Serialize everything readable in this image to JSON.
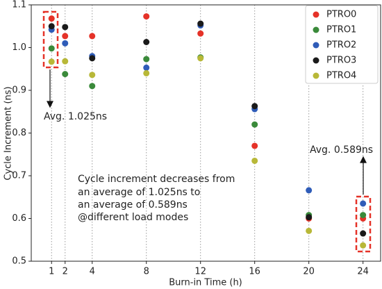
{
  "chart_data": {
    "type": "scatter",
    "x_label": "Burn-in Time (h)",
    "y_label": "Cycle Increment (ns)",
    "x": [
      1,
      2,
      4,
      8,
      12,
      16,
      20,
      24
    ],
    "series": [
      {
        "name": "PTRO0",
        "color": "#e53228",
        "values": [
          1.068,
          1.027,
          1.027,
          1.073,
          1.033,
          0.77,
          0.6,
          0.6
        ]
      },
      {
        "name": "PTRO1",
        "color": "#3a8a3a",
        "values": [
          0.998,
          0.938,
          0.91,
          0.973,
          0.977,
          0.82,
          0.608,
          0.608
        ]
      },
      {
        "name": "PTRO2",
        "color": "#2f5cb8",
        "values": [
          1.042,
          1.01,
          0.98,
          0.953,
          1.052,
          0.856,
          0.666,
          0.635
        ]
      },
      {
        "name": "PTRO3",
        "color": "#1a1a1a",
        "values": [
          1.05,
          1.048,
          0.975,
          1.013,
          1.056,
          0.863,
          0.603,
          0.565
        ]
      },
      {
        "name": "PTRO4",
        "color": "#b8b838",
        "values": [
          0.967,
          0.968,
          0.936,
          0.94,
          0.975,
          0.735,
          0.571,
          0.537
        ]
      }
    ],
    "xlim": [
      -0.5,
      25.3
    ],
    "ylim": [
      0.5,
      1.1
    ],
    "xticks": [
      1,
      2,
      4,
      8,
      12,
      16,
      20,
      24
    ],
    "yticks": [
      0.5,
      0.6,
      0.7,
      0.8,
      0.9,
      {
        "value": 1,
        "label": "1.0"
      },
      1.1
    ],
    "grid": "x",
    "legend": "upper-right",
    "annotations": [
      "Avg. 1.025ns",
      "Avg. 0.589ns"
    ],
    "note_lines": [
      "Cycle increment decreases from",
      "an average of 1.025ns to",
      "an average of 0.589ns",
      "@different load modes"
    ]
  }
}
